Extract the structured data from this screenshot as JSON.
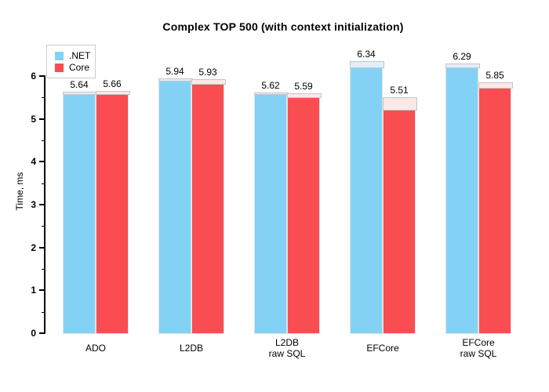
{
  "title": "Complex TOP 500 (with context initialization)",
  "chart_data": {
    "type": "bar",
    "title": "Complex TOP 500 (with context initialization)",
    "xlabel": "",
    "ylabel": "Time, ms",
    "ylim": [
      0,
      6
    ],
    "yticks": [
      0,
      1,
      2,
      3,
      4,
      5,
      6
    ],
    "minor_tick_step": 0.5,
    "grid": false,
    "legend_position": "top-left",
    "background": "#ffffff",
    "categories": [
      "ADO",
      "L2DB",
      "L2DB\nraw SQL",
      "EFCore",
      "EFCore\nraw SQL"
    ],
    "series": [
      {
        "name": ".NET",
        "color": "#83d2f6",
        "cap_color": "#e0effa",
        "values": [
          5.64,
          5.94,
          5.62,
          6.34,
          6.29
        ],
        "cap_extents_ms": [
          0.07,
          0.07,
          0.05,
          0.16,
          0.11
        ],
        "value_labels": [
          "5.64",
          "5.94",
          "5.62",
          "6.34",
          "6.29"
        ]
      },
      {
        "name": "Core",
        "color": "#fa4d52",
        "cap_color": "#fbe9e7",
        "values": [
          5.66,
          5.93,
          5.59,
          5.51,
          5.85
        ],
        "cap_extents_ms": [
          0.09,
          0.13,
          0.11,
          0.31,
          0.15
        ],
        "value_labels": [
          "5.66",
          "5.93",
          "5.59",
          "5.51",
          "5.85"
        ]
      }
    ]
  }
}
